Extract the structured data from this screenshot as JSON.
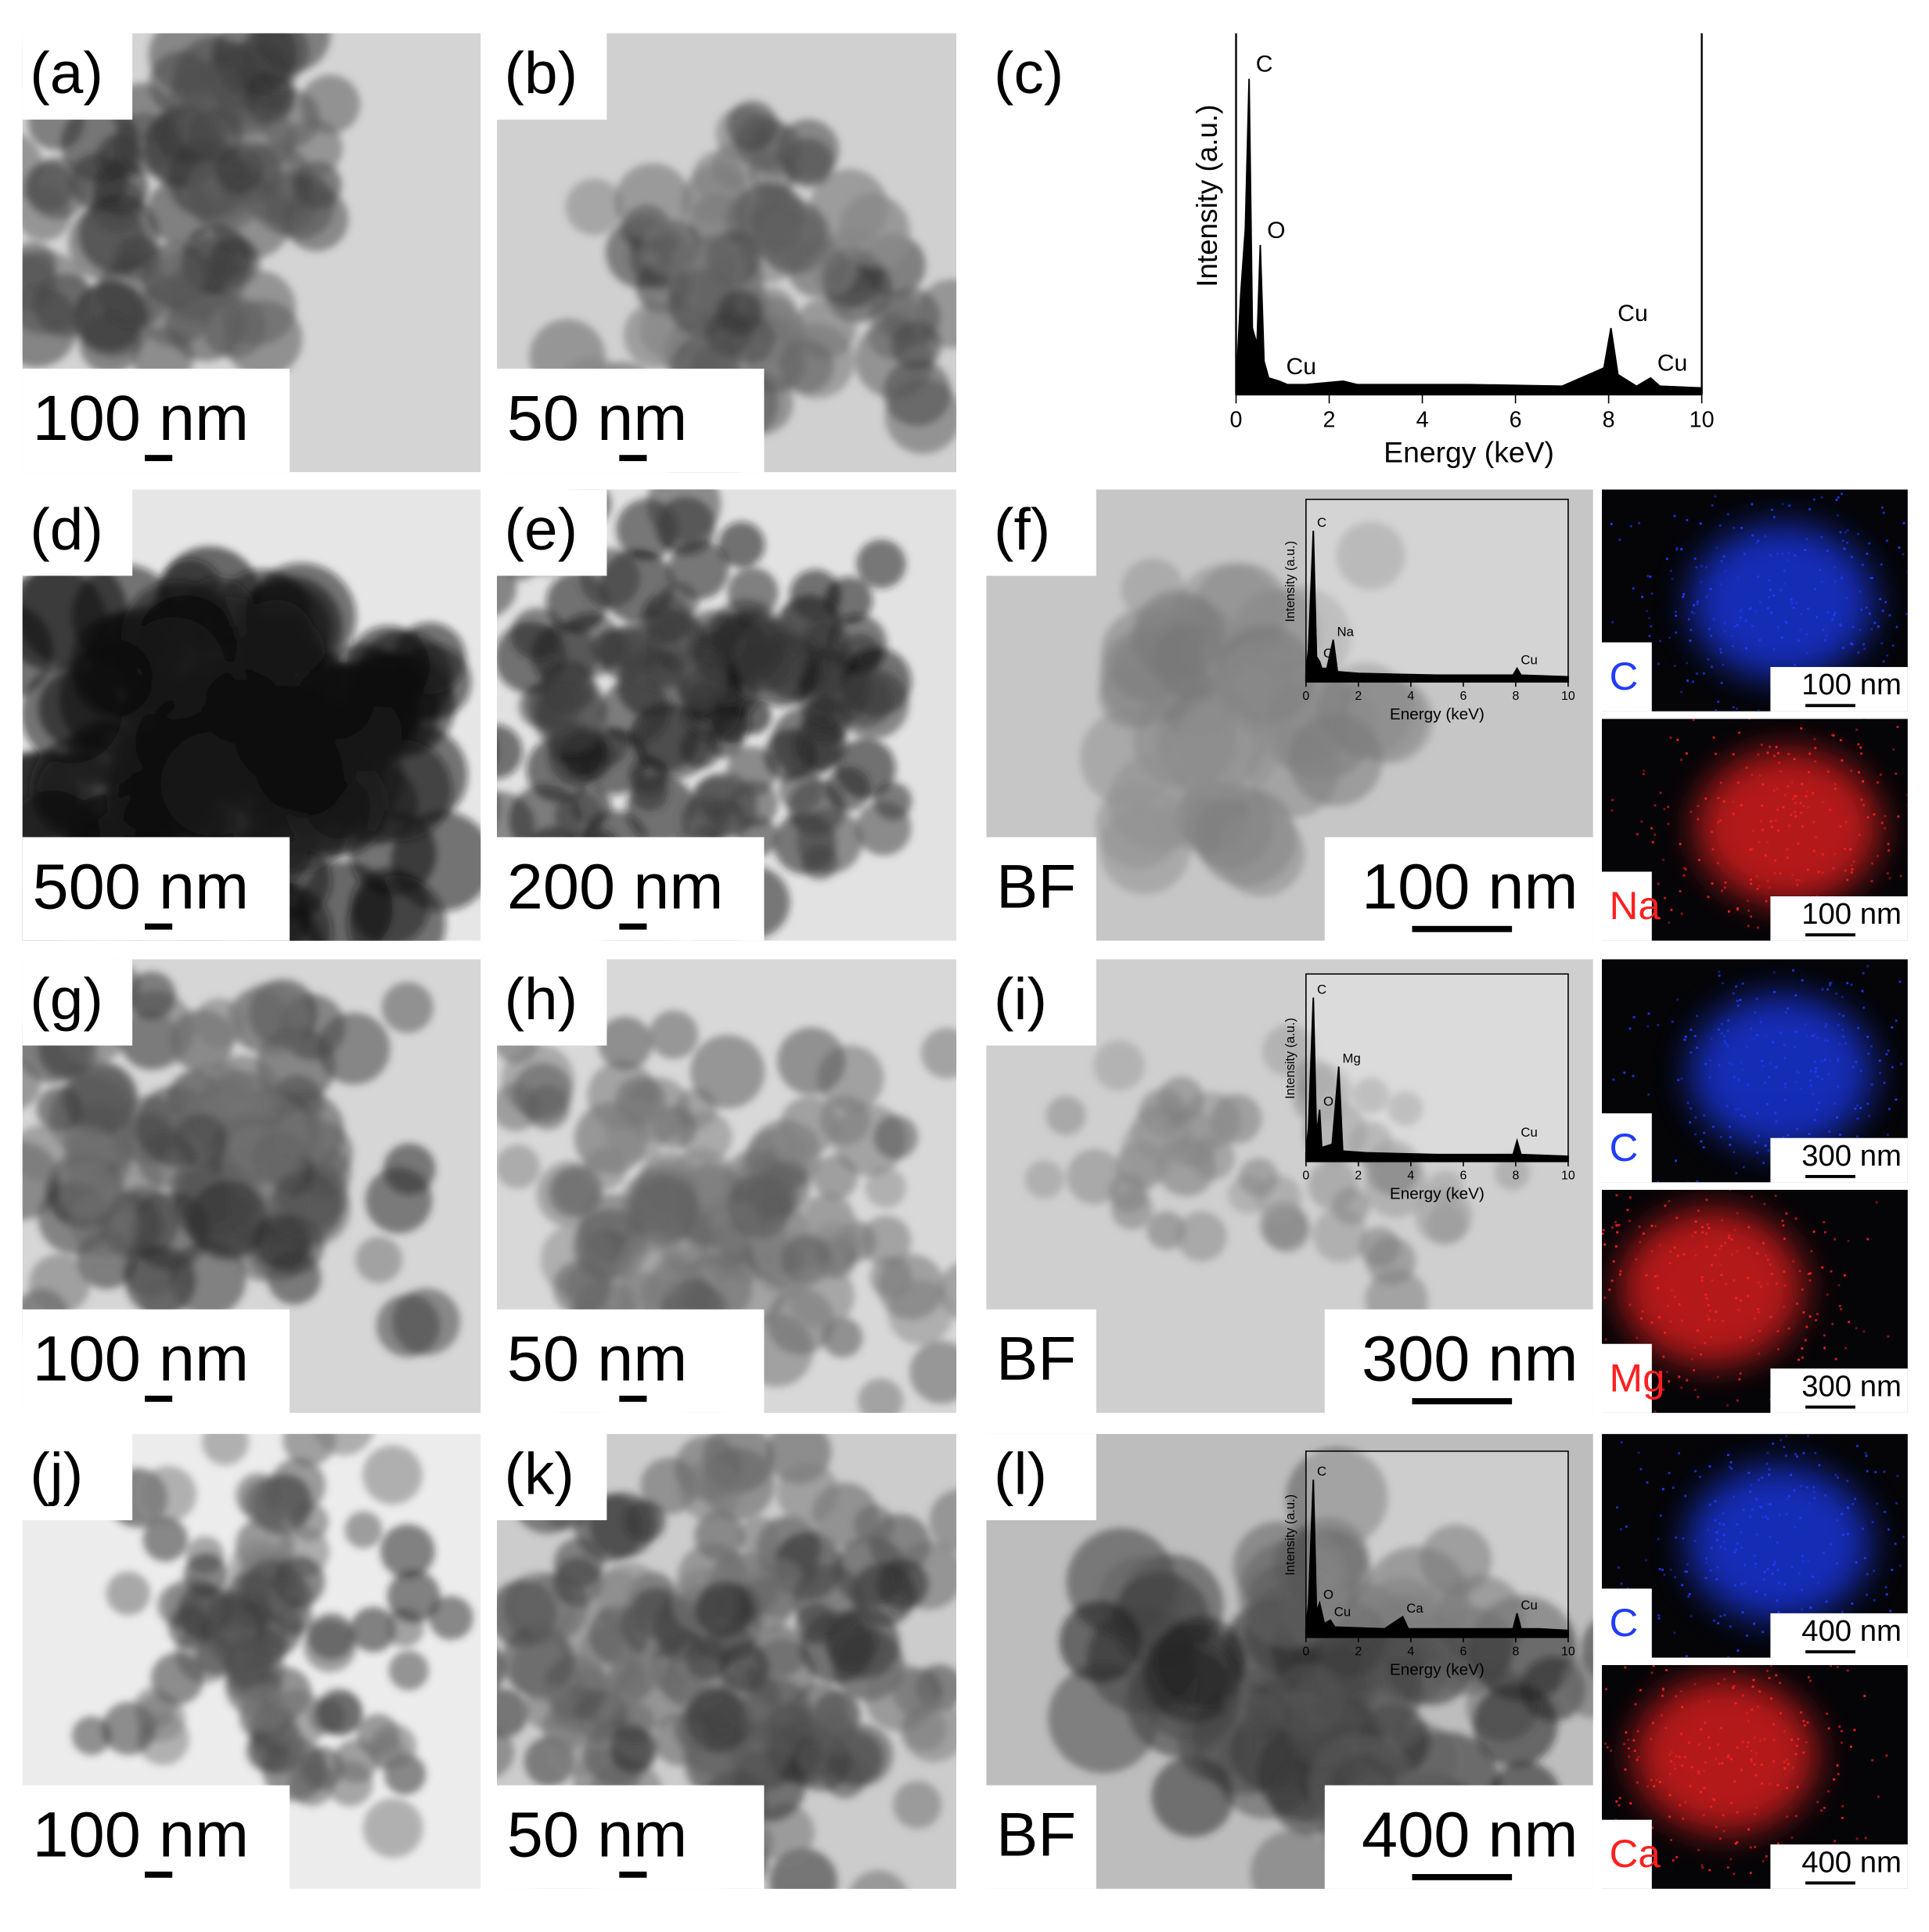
{
  "panels": [
    {
      "label": "(a)",
      "scale_bar": "100 nm"
    },
    {
      "label": "(b)",
      "scale_bar": "50 nm"
    },
    {
      "label": "(c)"
    },
    {
      "label": "(d)",
      "scale_bar": "500 nm"
    },
    {
      "label": "(e)",
      "scale_bar": "200 nm"
    },
    {
      "label": "(f)",
      "mode": "BF",
      "scale_bar": "100 nm",
      "maps": [
        {
          "element": "C",
          "color": "#1f3cff",
          "scale_bar": "100 nm"
        },
        {
          "element": "Na",
          "color": "#ff2020",
          "scale_bar": "100 nm"
        }
      ]
    },
    {
      "label": "(g)",
      "scale_bar": "100 nm"
    },
    {
      "label": "(h)",
      "scale_bar": "50 nm"
    },
    {
      "label": "(i)",
      "mode": "BF",
      "scale_bar": "300 nm",
      "maps": [
        {
          "element": "C",
          "color": "#1f3cff",
          "scale_bar": "300 nm"
        },
        {
          "element": "Mg",
          "color": "#ff2020",
          "scale_bar": "300 nm"
        }
      ]
    },
    {
      "label": "(j)",
      "scale_bar": "100 nm"
    },
    {
      "label": "(k)",
      "scale_bar": "50 nm"
    },
    {
      "label": "(l)",
      "mode": "BF",
      "scale_bar": "400 nm",
      "maps": [
        {
          "element": "C",
          "color": "#1f3cff",
          "scale_bar": "400 nm"
        },
        {
          "element": "Ca",
          "color": "#ff2020",
          "scale_bar": "400 nm"
        }
      ]
    }
  ],
  "chart_data": [
    {
      "type": "line",
      "panel": "(c)",
      "x_label": "Energy (keV)",
      "y_label": "Intensity (a.u.)",
      "xlim": [
        0,
        10
      ],
      "xticks": [
        0,
        2,
        4,
        6,
        8,
        10
      ],
      "ylim": [
        0,
        100
      ],
      "x": [
        0,
        0.1,
        0.2,
        0.28,
        0.35,
        0.45,
        0.52,
        0.6,
        0.7,
        0.93,
        1.1,
        1.5,
        2.3,
        2.6,
        3,
        5,
        7,
        7.9,
        8.05,
        8.2,
        8.6,
        8.9,
        9.1,
        10
      ],
      "values": [
        2,
        30,
        50,
        95,
        20,
        15,
        45,
        10,
        5,
        4,
        3,
        3,
        4,
        3,
        3,
        3,
        2.5,
        8,
        20,
        6,
        2.5,
        5,
        2.5,
        2
      ],
      "point_labels": [
        null,
        null,
        null,
        "C",
        null,
        null,
        "O",
        null,
        null,
        "Cu",
        null,
        null,
        null,
        null,
        null,
        null,
        null,
        null,
        "Cu",
        null,
        null,
        "Cu",
        null,
        null
      ]
    },
    {
      "type": "line",
      "panel": "(f)",
      "x_label": "Energy (keV)",
      "y_label": "Intensity (a.u.)",
      "xlim": [
        0,
        10
      ],
      "xticks": [
        0,
        2,
        4,
        6,
        8,
        10
      ],
      "ylim": [
        0,
        100
      ],
      "x": [
        0,
        0.1,
        0.28,
        0.4,
        0.52,
        0.6,
        0.8,
        1.04,
        1.2,
        2,
        5,
        7.9,
        8.05,
        8.2,
        10
      ],
      "values": [
        5,
        20,
        90,
        15,
        12,
        8,
        8,
        25,
        6,
        5,
        4,
        4,
        8,
        4,
        3
      ],
      "point_labels": [
        null,
        null,
        "C",
        null,
        "O",
        null,
        null,
        "Na",
        null,
        null,
        null,
        null,
        "Cu",
        null,
        null
      ]
    },
    {
      "type": "line",
      "panel": "(i)",
      "x_label": "Energy (keV)",
      "y_label": "Intensity (a.u.)",
      "xlim": [
        0,
        10
      ],
      "xticks": [
        0,
        2,
        4,
        6,
        8,
        10
      ],
      "ylim": [
        0,
        100
      ],
      "x": [
        0,
        0.1,
        0.28,
        0.4,
        0.52,
        0.6,
        1.0,
        1.25,
        1.4,
        2.3,
        5,
        7.9,
        8.05,
        8.2,
        10
      ],
      "values": [
        5,
        20,
        95,
        15,
        30,
        8,
        10,
        55,
        6,
        5,
        4,
        4,
        12,
        4,
        3
      ],
      "point_labels": [
        null,
        null,
        "C",
        null,
        "O",
        null,
        null,
        "Mg",
        null,
        null,
        null,
        null,
        "Cu",
        null,
        null
      ]
    },
    {
      "type": "line",
      "panel": "(l)",
      "x_label": "Energy (keV)",
      "y_label": "Intensity (a.u.)",
      "xlim": [
        0,
        10
      ],
      "xticks": [
        0,
        2,
        4,
        6,
        8,
        10
      ],
      "ylim": [
        0,
        100
      ],
      "x": [
        0,
        0.1,
        0.28,
        0.4,
        0.52,
        0.7,
        0.93,
        1.1,
        3,
        3.69,
        3.9,
        7.9,
        8.05,
        8.2,
        8.9,
        10
      ],
      "values": [
        5,
        20,
        92,
        15,
        20,
        8,
        10,
        6,
        5,
        12,
        5,
        5,
        14,
        5,
        5,
        4
      ],
      "point_labels": [
        null,
        null,
        "C",
        null,
        "O",
        null,
        "Cu",
        null,
        null,
        "Ca",
        null,
        null,
        "Cu",
        null,
        null,
        null
      ]
    }
  ]
}
